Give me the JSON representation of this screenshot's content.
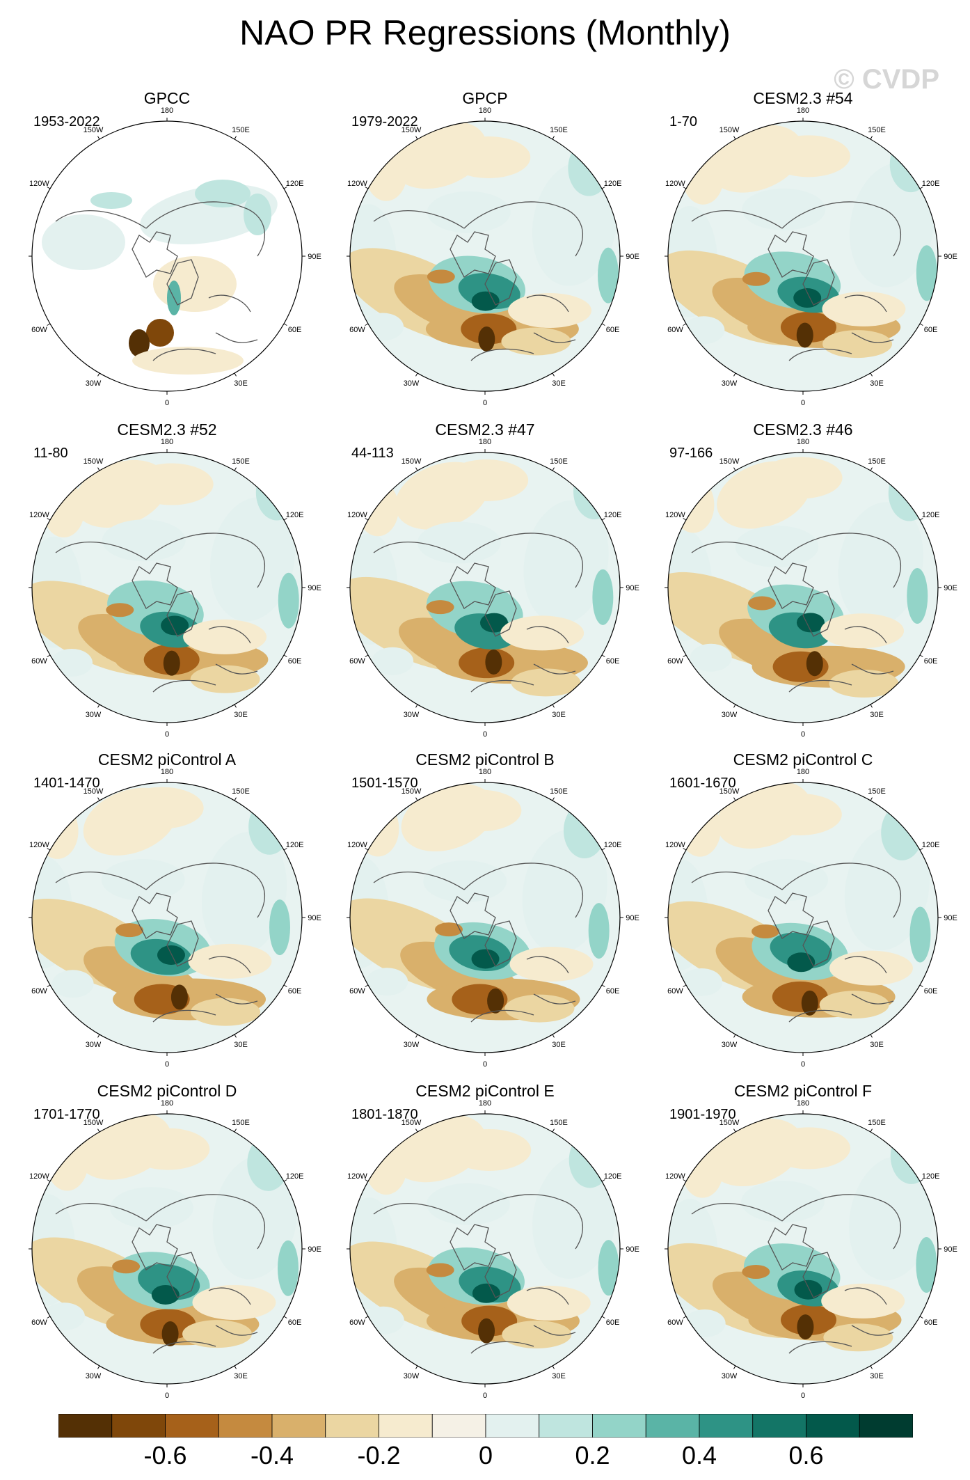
{
  "title": "NAO PR Regressions (Monthly)",
  "watermark": "© CVDP",
  "lon_labels": [
    "180",
    "150E",
    "120E",
    "90E",
    "60E",
    "30E",
    "0",
    "30W",
    "60W",
    "90W",
    "120W",
    "150W"
  ],
  "panels": [
    {
      "title": "GPCC",
      "period": "1953-2022",
      "coverage": "land-only"
    },
    {
      "title": "GPCP",
      "period": "1979-2022",
      "coverage": "global"
    },
    {
      "title": "CESM2.3 #54",
      "period": "1-70",
      "coverage": "global"
    },
    {
      "title": "CESM2.3 #52",
      "period": "11-80",
      "coverage": "global"
    },
    {
      "title": "CESM2.3 #47",
      "period": "44-113",
      "coverage": "global"
    },
    {
      "title": "CESM2.3 #46",
      "period": "97-166",
      "coverage": "global"
    },
    {
      "title": "CESM2 piControl A",
      "period": "1401-1470",
      "coverage": "global"
    },
    {
      "title": "CESM2 piControl B",
      "period": "1501-1570",
      "coverage": "global"
    },
    {
      "title": "CESM2 piControl C",
      "period": "1601-1670",
      "coverage": "global"
    },
    {
      "title": "CESM2 piControl D",
      "period": "1701-1770",
      "coverage": "global"
    },
    {
      "title": "CESM2 piControl E",
      "period": "1801-1870",
      "coverage": "global"
    },
    {
      "title": "CESM2 piControl F",
      "period": "1901-1970",
      "coverage": "global"
    }
  ],
  "colorbar": {
    "colors": [
      "#543005",
      "#7f470a",
      "#a6611a",
      "#c58a3f",
      "#d9b06b",
      "#ebd6a2",
      "#f6ebcf",
      "#f5f1e6",
      "#e3f1ef",
      "#bfe5df",
      "#93d4c8",
      "#5ab4a6",
      "#2e9385",
      "#137566",
      "#03594b",
      "#003c30"
    ],
    "labels": [
      "-0.6",
      "-0.4",
      "-0.2",
      "0",
      "0.2",
      "0.4",
      "0.6"
    ]
  }
}
